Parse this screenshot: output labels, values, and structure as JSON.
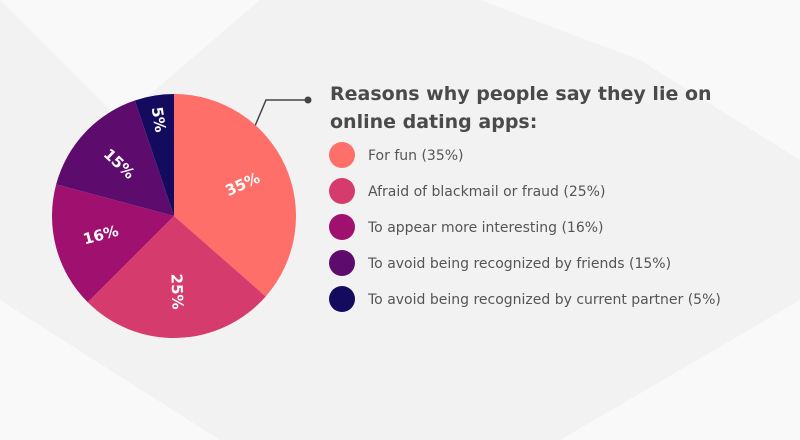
{
  "chart_data": {
    "type": "pie",
    "title": "Reasons why people say they lie on online dating apps:",
    "categories": [
      "For fun (35%)",
      "Afraid of blackmail or fraud (25%)",
      "To appear more interesting (16%)",
      "To avoid being recognized by friends (15%)",
      "To avoid being recognized by current partner (5%)"
    ],
    "values": [
      35,
      25,
      16,
      15,
      5
    ],
    "value_labels": [
      "35%",
      "25%",
      "16%",
      "15%",
      "5%"
    ],
    "colors": [
      "#ff6f69",
      "#d63b6e",
      "#a0106e",
      "#5e0b6e",
      "#140b5e"
    ]
  }
}
